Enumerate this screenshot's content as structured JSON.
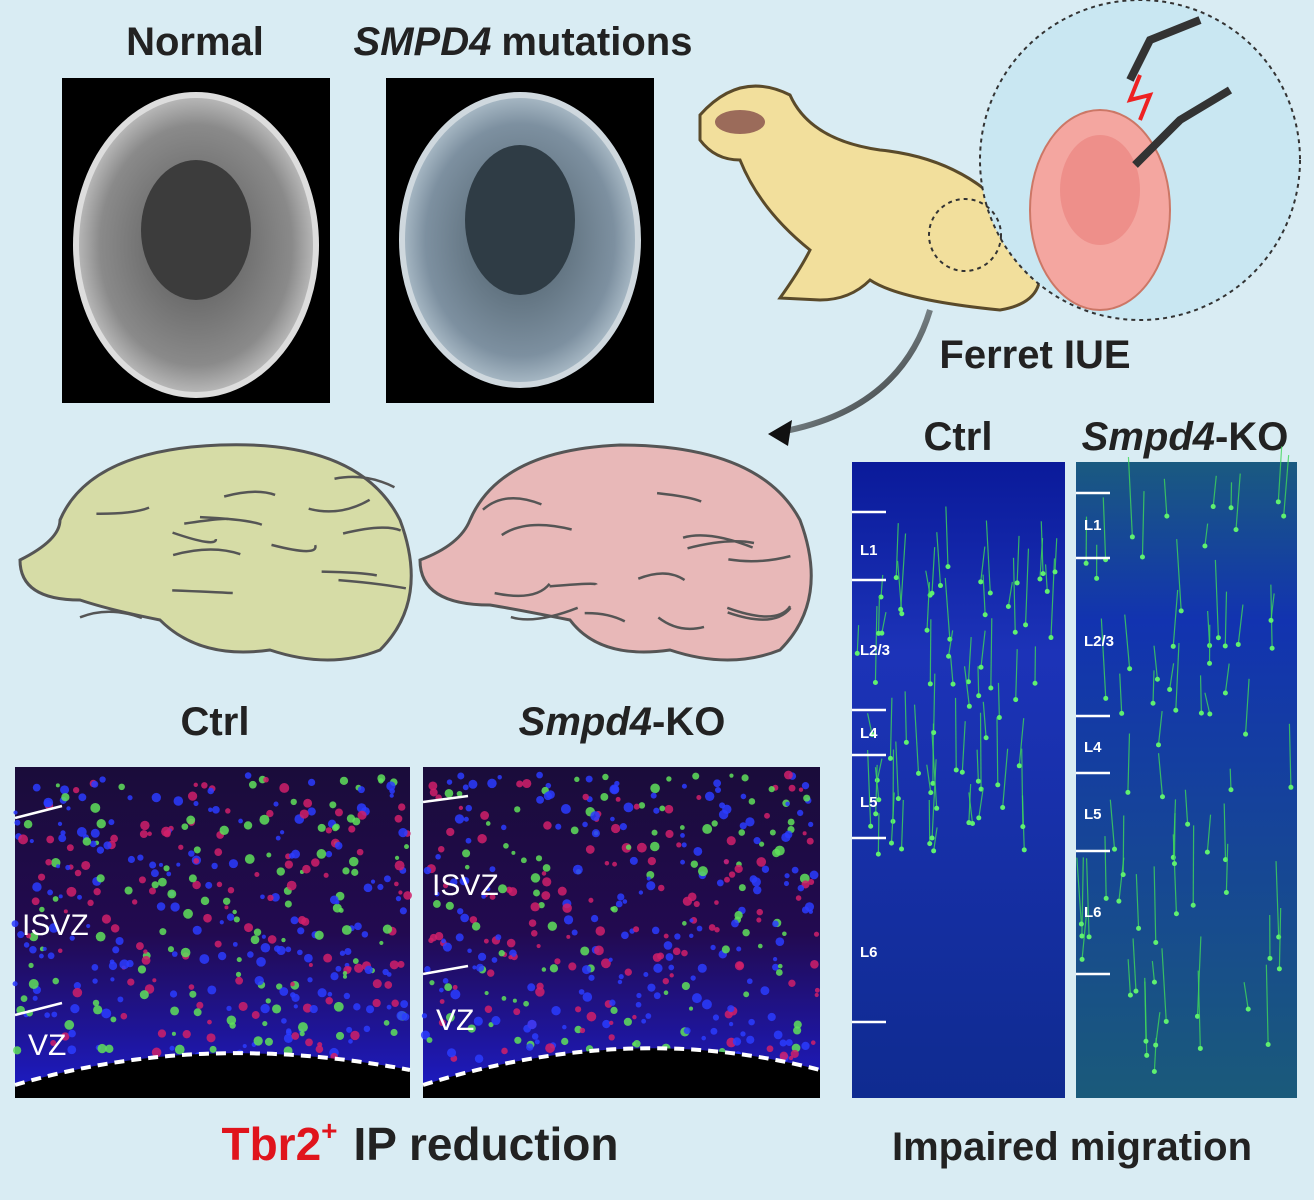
{
  "mri": {
    "normal": "Normal",
    "mutant_gene": "SMPD4",
    "mutant_suffix": "mutations"
  },
  "ferret": {
    "label": "Ferret IUE"
  },
  "ip": {
    "panels": [
      {
        "title": "Ctrl",
        "zones": [
          "ISVZ",
          "VZ"
        ]
      },
      {
        "title_gene": "Smpd4",
        "title_suffix": "-KO",
        "zones": [
          "ISVZ",
          "VZ"
        ]
      }
    ],
    "caption_marker": "Tbr2",
    "caption_sup": "+",
    "caption_rest": "IP reduction"
  },
  "migration": {
    "panels": [
      {
        "title": "Ctrl",
        "layers": [
          "L1",
          "L2/3",
          "L4",
          "L5",
          "L6"
        ]
      },
      {
        "title_gene": "Smpd4",
        "title_suffix": "-KO",
        "layers": [
          "L1",
          "L2/3",
          "L4",
          "L5",
          "L6"
        ]
      }
    ],
    "caption": "Impaired migration"
  }
}
